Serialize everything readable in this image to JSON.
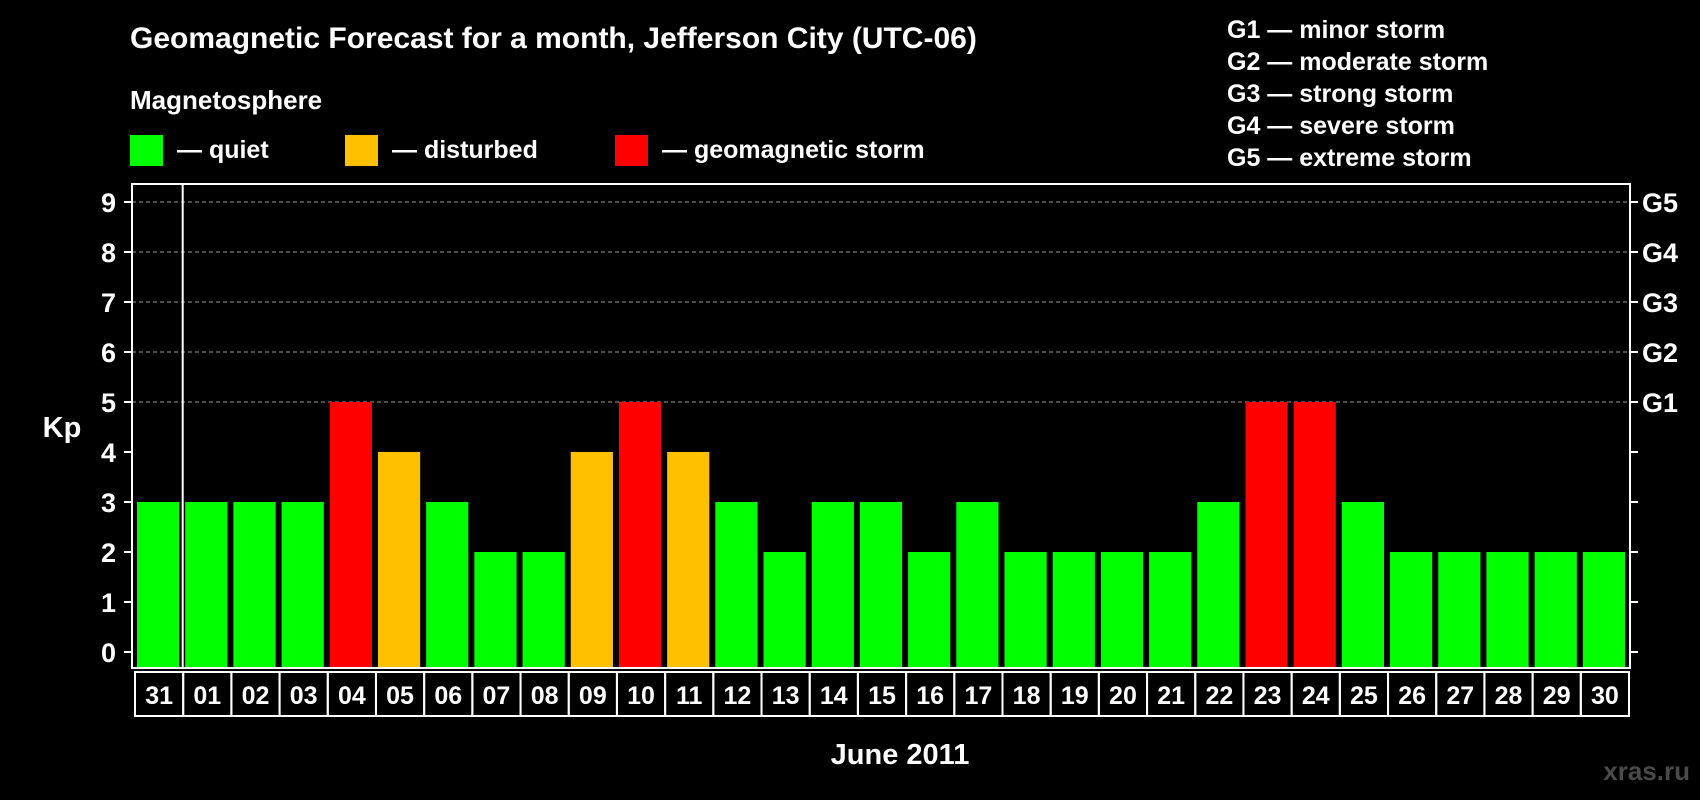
{
  "chart_data": {
    "type": "bar",
    "title": "Geomagnetic Forecast for a month, Jefferson City (UTC-06)",
    "subtitle": "Magnetosphere",
    "xlabel": "June 2011",
    "ylabel": "Kp",
    "ylim": [
      0,
      9
    ],
    "grid": true,
    "categories": [
      "31",
      "01",
      "02",
      "03",
      "04",
      "05",
      "06",
      "07",
      "08",
      "09",
      "10",
      "11",
      "12",
      "13",
      "14",
      "15",
      "16",
      "17",
      "18",
      "19",
      "20",
      "21",
      "22",
      "23",
      "24",
      "25",
      "26",
      "27",
      "28",
      "29",
      "30"
    ],
    "values": [
      3,
      3,
      3,
      3,
      5,
      4,
      3,
      2,
      2,
      4,
      5,
      4,
      3,
      2,
      3,
      3,
      2,
      3,
      2,
      2,
      2,
      2,
      3,
      5,
      5,
      3,
      2,
      2,
      2,
      2,
      2
    ],
    "status": [
      "quiet",
      "quiet",
      "quiet",
      "quiet",
      "storm",
      "disturbed",
      "quiet",
      "quiet",
      "quiet",
      "disturbed",
      "storm",
      "disturbed",
      "quiet",
      "quiet",
      "quiet",
      "quiet",
      "quiet",
      "quiet",
      "quiet",
      "quiet",
      "quiet",
      "quiet",
      "quiet",
      "storm",
      "storm",
      "quiet",
      "quiet",
      "quiet",
      "quiet",
      "quiet",
      "quiet"
    ],
    "y_ticks": [
      "0",
      "1",
      "2",
      "3",
      "4",
      "5",
      "6",
      "7",
      "8",
      "9"
    ],
    "right_axis": [
      {
        "kp": 5,
        "label": "G1"
      },
      {
        "kp": 6,
        "label": "G2"
      },
      {
        "kp": 7,
        "label": "G3"
      },
      {
        "kp": 8,
        "label": "G4"
      },
      {
        "kp": 9,
        "label": "G5"
      }
    ],
    "legend": [
      {
        "key": "quiet",
        "label": "— quiet",
        "color": "#00ff00"
      },
      {
        "key": "disturbed",
        "label": "— disturbed",
        "color": "#ffc000"
      },
      {
        "key": "storm",
        "label": "— geomagnetic storm",
        "color": "#ff0000"
      }
    ],
    "storm_scale": [
      "G1 — minor storm",
      "G2 — moderate storm",
      "G3 — strong storm",
      "G4 — severe storm",
      "G5 — extreme storm"
    ]
  },
  "watermark": "xras.ru"
}
